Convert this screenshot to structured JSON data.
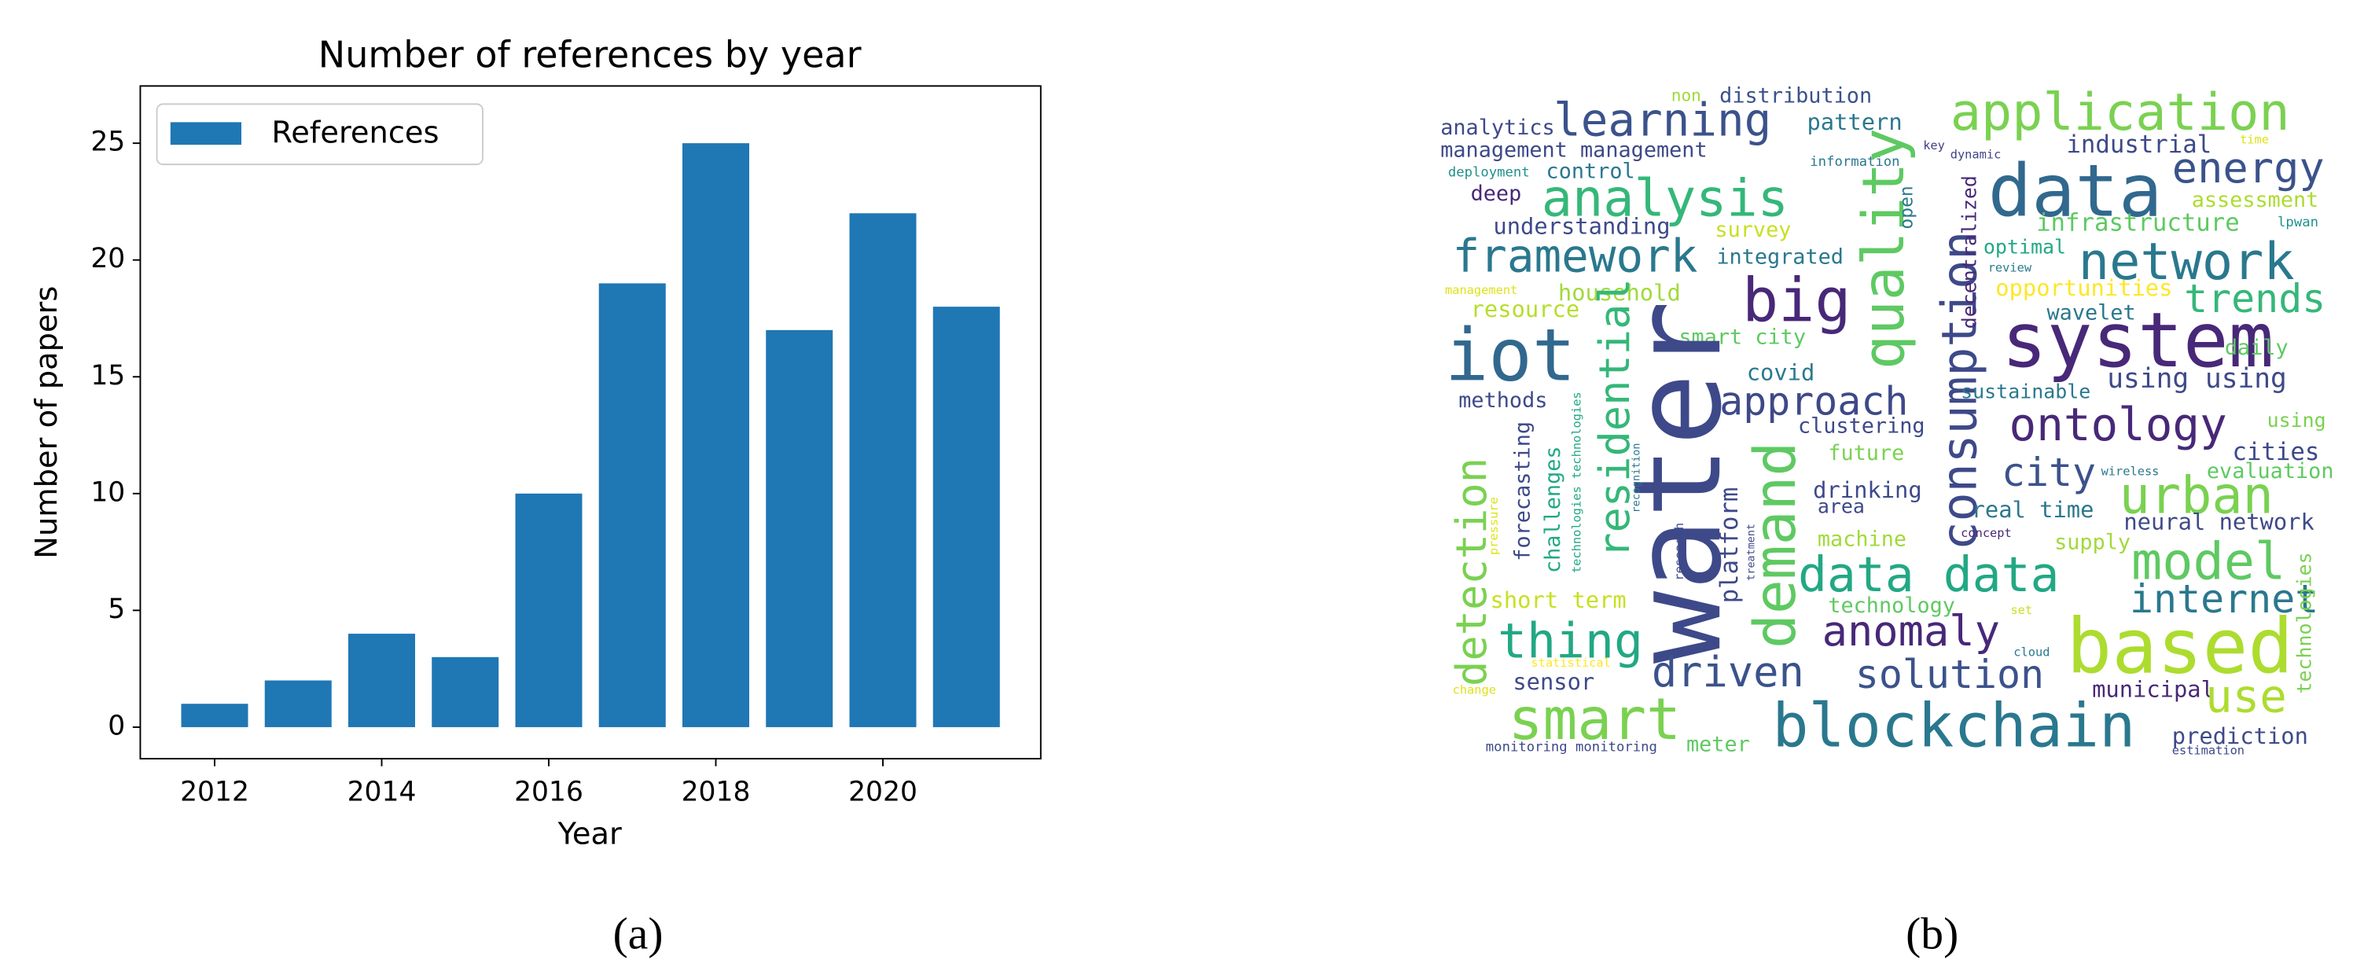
{
  "chart_data": {
    "type": "bar",
    "title": "Number of references by year",
    "xlabel": "Year",
    "ylabel": "Number of papers",
    "x": [
      2012,
      2013,
      2014,
      2015,
      2016,
      2017,
      2018,
      2019,
      2020,
      2021
    ],
    "series": [
      {
        "name": "References",
        "color": "#1f77b4",
        "values": [
          1,
          2,
          4,
          3,
          10,
          19,
          25,
          17,
          22,
          18
        ]
      }
    ],
    "xlim": [
      2011.11,
      2021.89
    ],
    "xticks": [
      2012,
      2014,
      2016,
      2018,
      2020
    ],
    "ylim": [
      -1.35,
      27.45
    ],
    "yticks": [
      0,
      5,
      10,
      15,
      20,
      25
    ],
    "grid": false,
    "legend": "upper left"
  },
  "word_cloud": {
    "words": [
      "non",
      "distribution",
      "analytics",
      "learning",
      "pattern",
      "application",
      "management management",
      "industrial",
      "information",
      "key",
      "dynamic",
      "time",
      "energy",
      "deployment",
      "control",
      "data",
      "analysis",
      "deep",
      "quality",
      "assessment",
      "understanding",
      "survey",
      "open",
      "consumption",
      "decentralized",
      "infrastructure",
      "lpwan",
      "framework",
      "integrated",
      "optimal",
      "network",
      "review",
      "management",
      "big",
      "household",
      "opportunities",
      "trends",
      "resource",
      "wavelet",
      "residential",
      "system",
      "smart city",
      "iot",
      "daily",
      "water",
      "covid",
      "using using",
      "sustainable",
      "methods",
      "approach",
      "technologies technologies",
      "recognition",
      "clustering",
      "ontology",
      "using",
      "detection",
      "forecasting",
      "challenges",
      "demand",
      "future",
      "cities",
      "city",
      "wireless",
      "evaluation",
      "urban",
      "drinking",
      "area",
      "pressure",
      "platform",
      "research",
      "treatment",
      "real time",
      "concept",
      "neural network",
      "supply",
      "machine",
      "model",
      "data data",
      "internet",
      "short term",
      "technology",
      "set",
      "technologies",
      "thing",
      "anomaly",
      "based",
      "statistical",
      "cloud",
      "driven",
      "solution",
      "sensor",
      "change",
      "municipal",
      "use",
      "smart",
      "blockchain",
      "prediction",
      "estimation",
      "monitoring monitoring",
      "meter"
    ]
  },
  "captions": {
    "a": "(a)",
    "b": "(b)"
  }
}
